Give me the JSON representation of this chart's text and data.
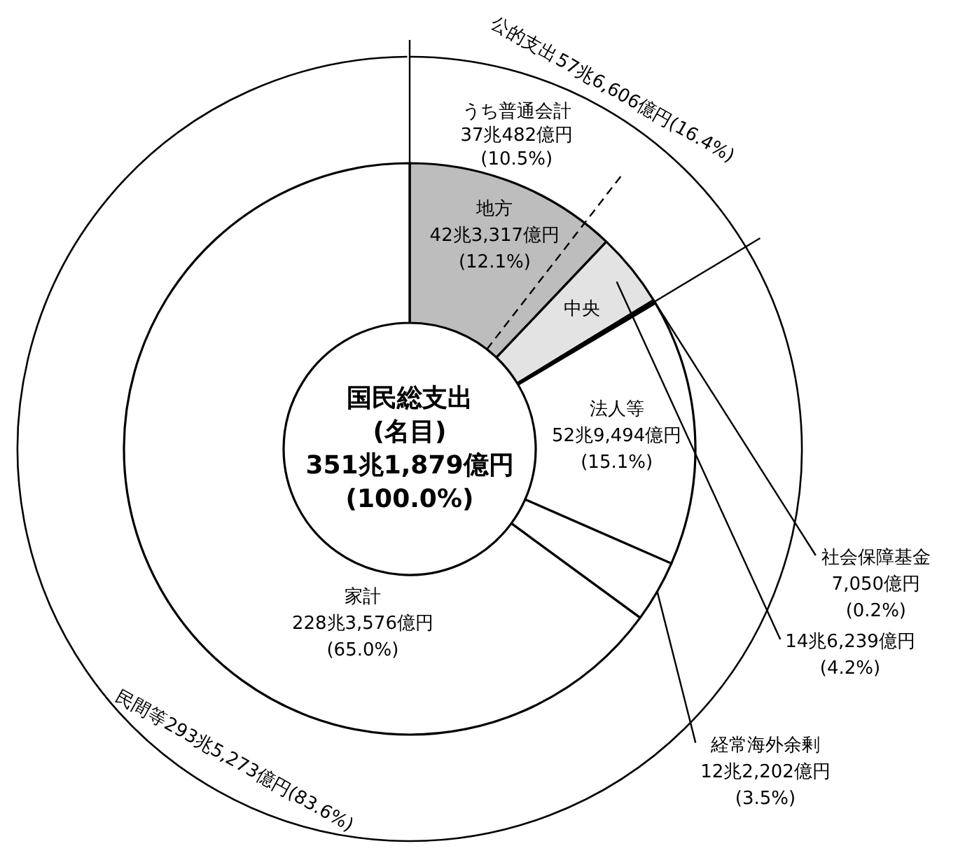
{
  "chart_data": [
    {
      "type": "donut",
      "title": "国民総支出",
      "subtitle": "(名目)",
      "annotations": [
        "351兆1,879億円\n(100.0%)"
      ],
      "categories": [
        "地方",
        "中央",
        "社会保障基金",
        "法人等",
        "経常海外余剰",
        "家計"
      ],
      "values": [
        12.1,
        4.2,
        0.2,
        15.1,
        3.5,
        65.0
      ],
      "colors": [
        "#bdbdbd",
        "#e3e3e3",
        "#ffffff",
        "#ffffff",
        "#ffffff",
        "#ffffff"
      ],
      "value_labels": [
        "42兆3,317億円\n(12.1%)",
        "14兆6,239億円\n(4.2%)",
        "7,050億円\n(0.2%)",
        "52兆9,494億円\n(15.1%)",
        "12兆2,202億円\n(3.5%)",
        "228兆3,576億円\n(65.0%)"
      ]
    },
    {
      "type": "other",
      "categories": [
        "公的支出",
        "民間等",
        "うち普通会計"
      ],
      "values": [
        16.4,
        83.6,
        10.5
      ],
      "colors": [
        "#000000",
        "#000000",
        "#000000"
      ],
      "value_labels": [
        "57兆6,606億円(16.4%)",
        "293兆5,273億円(83.6%)",
        "37兆482億円\n(10.5%)"
      ]
    }
  ]
}
